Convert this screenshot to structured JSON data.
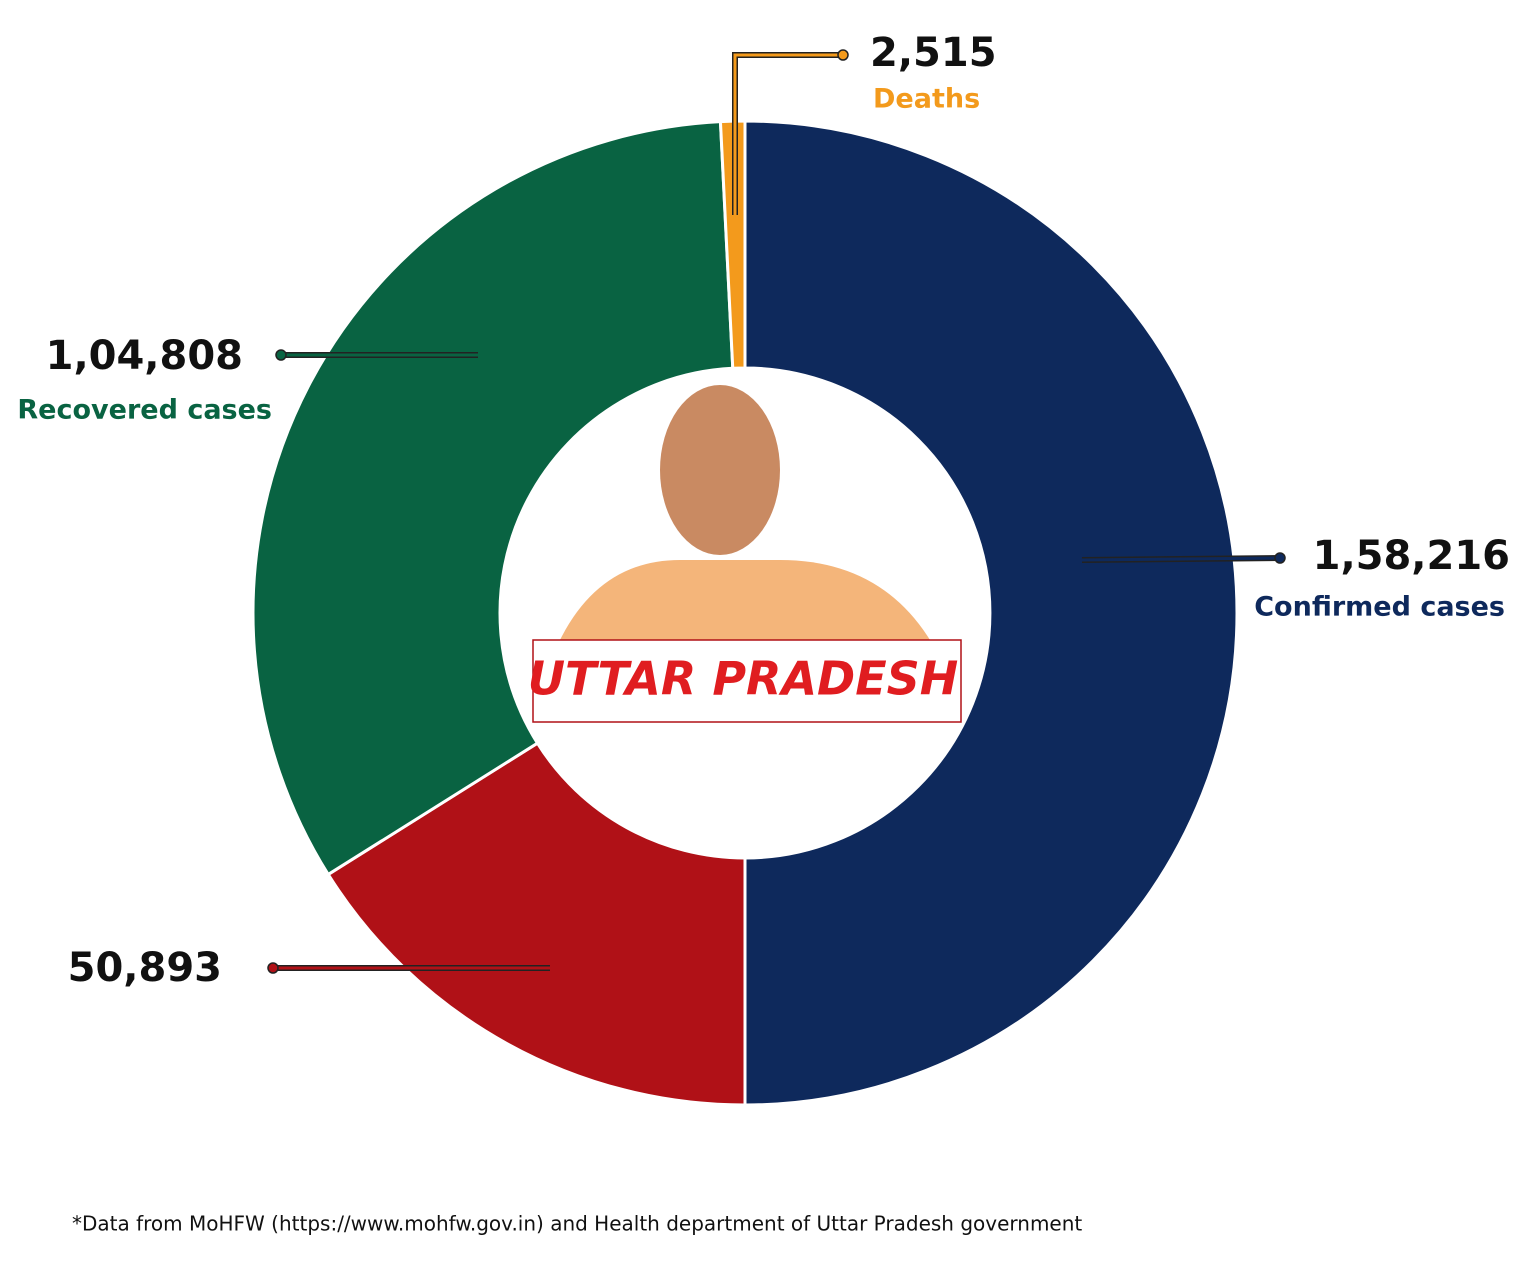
{
  "chart_data": {
    "type": "donut",
    "categories": [
      "Confirmed cases",
      null,
      "Recovered cases",
      "Deaths"
    ],
    "values": [
      158216,
      50893,
      104808,
      2515
    ],
    "value_labels": [
      "1,58,216",
      "50,893",
      "1,04,808",
      "2,515"
    ],
    "colors": [
      "#0e295c",
      "#b01117",
      "#096342",
      "#f39a1c"
    ],
    "center_label": "UTTAR PRADESH",
    "source": "*Data from MoHFW (https://www.mohfw.gov.in) and Health department of Uttar Pradesh government"
  }
}
